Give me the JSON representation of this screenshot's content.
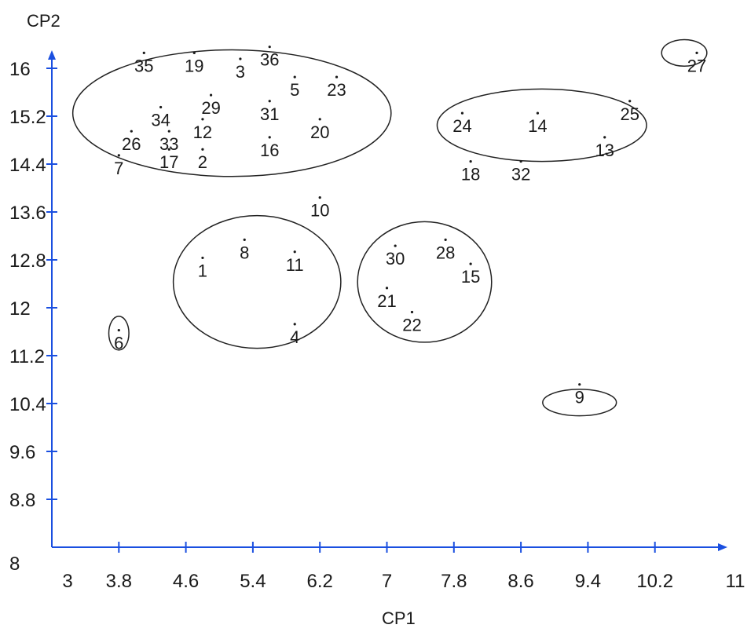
{
  "chart_data": {
    "type": "scatter",
    "title": "",
    "xlabel": "CP1",
    "ylabel": "CP2",
    "xlim": [
      3,
      11
    ],
    "ylim": [
      8,
      16.4
    ],
    "grid": false,
    "axis_color": "#1a4fe0",
    "x_ticks": [
      "3",
      "3.8",
      "4.6",
      "5.4",
      "6.2",
      "7",
      "7.8",
      "8.6",
      "9.4",
      "10.2",
      "11"
    ],
    "y_ticks": [
      "8",
      "8.8",
      "9.6",
      "10.4",
      "11.2",
      "12",
      "12.8",
      "13.6",
      "14.4",
      "15.2",
      "16"
    ],
    "points": [
      {
        "label": "1",
        "x": 4.8,
        "y": 12.8
      },
      {
        "label": "2",
        "x": 4.8,
        "y": 14.6
      },
      {
        "label": "3",
        "x": 5.25,
        "y": 16.1
      },
      {
        "label": "4",
        "x": 5.9,
        "y": 11.7
      },
      {
        "label": "5",
        "x": 5.9,
        "y": 15.8
      },
      {
        "label": "6",
        "x": 3.8,
        "y": 11.6
      },
      {
        "label": "7",
        "x": 3.8,
        "y": 14.5
      },
      {
        "label": "8",
        "x": 5.3,
        "y": 13.1
      },
      {
        "label": "9",
        "x": 9.3,
        "y": 10.7
      },
      {
        "label": "10",
        "x": 6.2,
        "y": 13.8
      },
      {
        "label": "11",
        "x": 5.9,
        "y": 12.9
      },
      {
        "label": "12",
        "x": 4.8,
        "y": 15.1
      },
      {
        "label": "13",
        "x": 9.6,
        "y": 14.8
      },
      {
        "label": "14",
        "x": 8.8,
        "y": 15.2
      },
      {
        "label": "15",
        "x": 8.0,
        "y": 12.7
      },
      {
        "label": "16",
        "x": 5.6,
        "y": 14.8
      },
      {
        "label": "17",
        "x": 4.4,
        "y": 14.6
      },
      {
        "label": "18",
        "x": 8.0,
        "y": 14.4
      },
      {
        "label": "19",
        "x": 4.7,
        "y": 16.2
      },
      {
        "label": "20",
        "x": 6.2,
        "y": 15.1
      },
      {
        "label": "21",
        "x": 7.0,
        "y": 12.3
      },
      {
        "label": "22",
        "x": 7.3,
        "y": 11.9
      },
      {
        "label": "23",
        "x": 6.4,
        "y": 15.8
      },
      {
        "label": "24",
        "x": 7.9,
        "y": 15.2
      },
      {
        "label": "25",
        "x": 9.9,
        "y": 15.4
      },
      {
        "label": "26",
        "x": 3.95,
        "y": 14.9
      },
      {
        "label": "27",
        "x": 10.7,
        "y": 16.2
      },
      {
        "label": "28",
        "x": 7.7,
        "y": 13.1
      },
      {
        "label": "29",
        "x": 4.9,
        "y": 15.5
      },
      {
        "label": "30",
        "x": 7.1,
        "y": 13.0
      },
      {
        "label": "31",
        "x": 5.6,
        "y": 15.4
      },
      {
        "label": "32",
        "x": 8.6,
        "y": 14.4
      },
      {
        "label": "33",
        "x": 4.4,
        "y": 14.9
      },
      {
        "label": "34",
        "x": 4.3,
        "y": 15.3
      },
      {
        "label": "35",
        "x": 4.1,
        "y": 16.2
      },
      {
        "label": "36",
        "x": 5.6,
        "y": 16.3
      }
    ],
    "clusters": [
      {
        "cx": 5.15,
        "cy": 15.2,
        "rx": 1.9,
        "ry": 1.05
      },
      {
        "cx": 5.45,
        "cy": 12.4,
        "rx": 1.0,
        "ry": 1.1
      },
      {
        "cx": 7.45,
        "cy": 12.4,
        "rx": 0.8,
        "ry": 1.0
      },
      {
        "cx": 8.85,
        "cy": 15.0,
        "rx": 1.25,
        "ry": 0.6
      },
      {
        "cx": 3.8,
        "cy": 11.55,
        "rx": 0.12,
        "ry": 0.28
      },
      {
        "cx": 9.3,
        "cy": 10.4,
        "rx": 0.44,
        "ry": 0.22
      },
      {
        "cx": 10.55,
        "cy": 16.2,
        "rx": 0.27,
        "ry": 0.22
      }
    ]
  }
}
